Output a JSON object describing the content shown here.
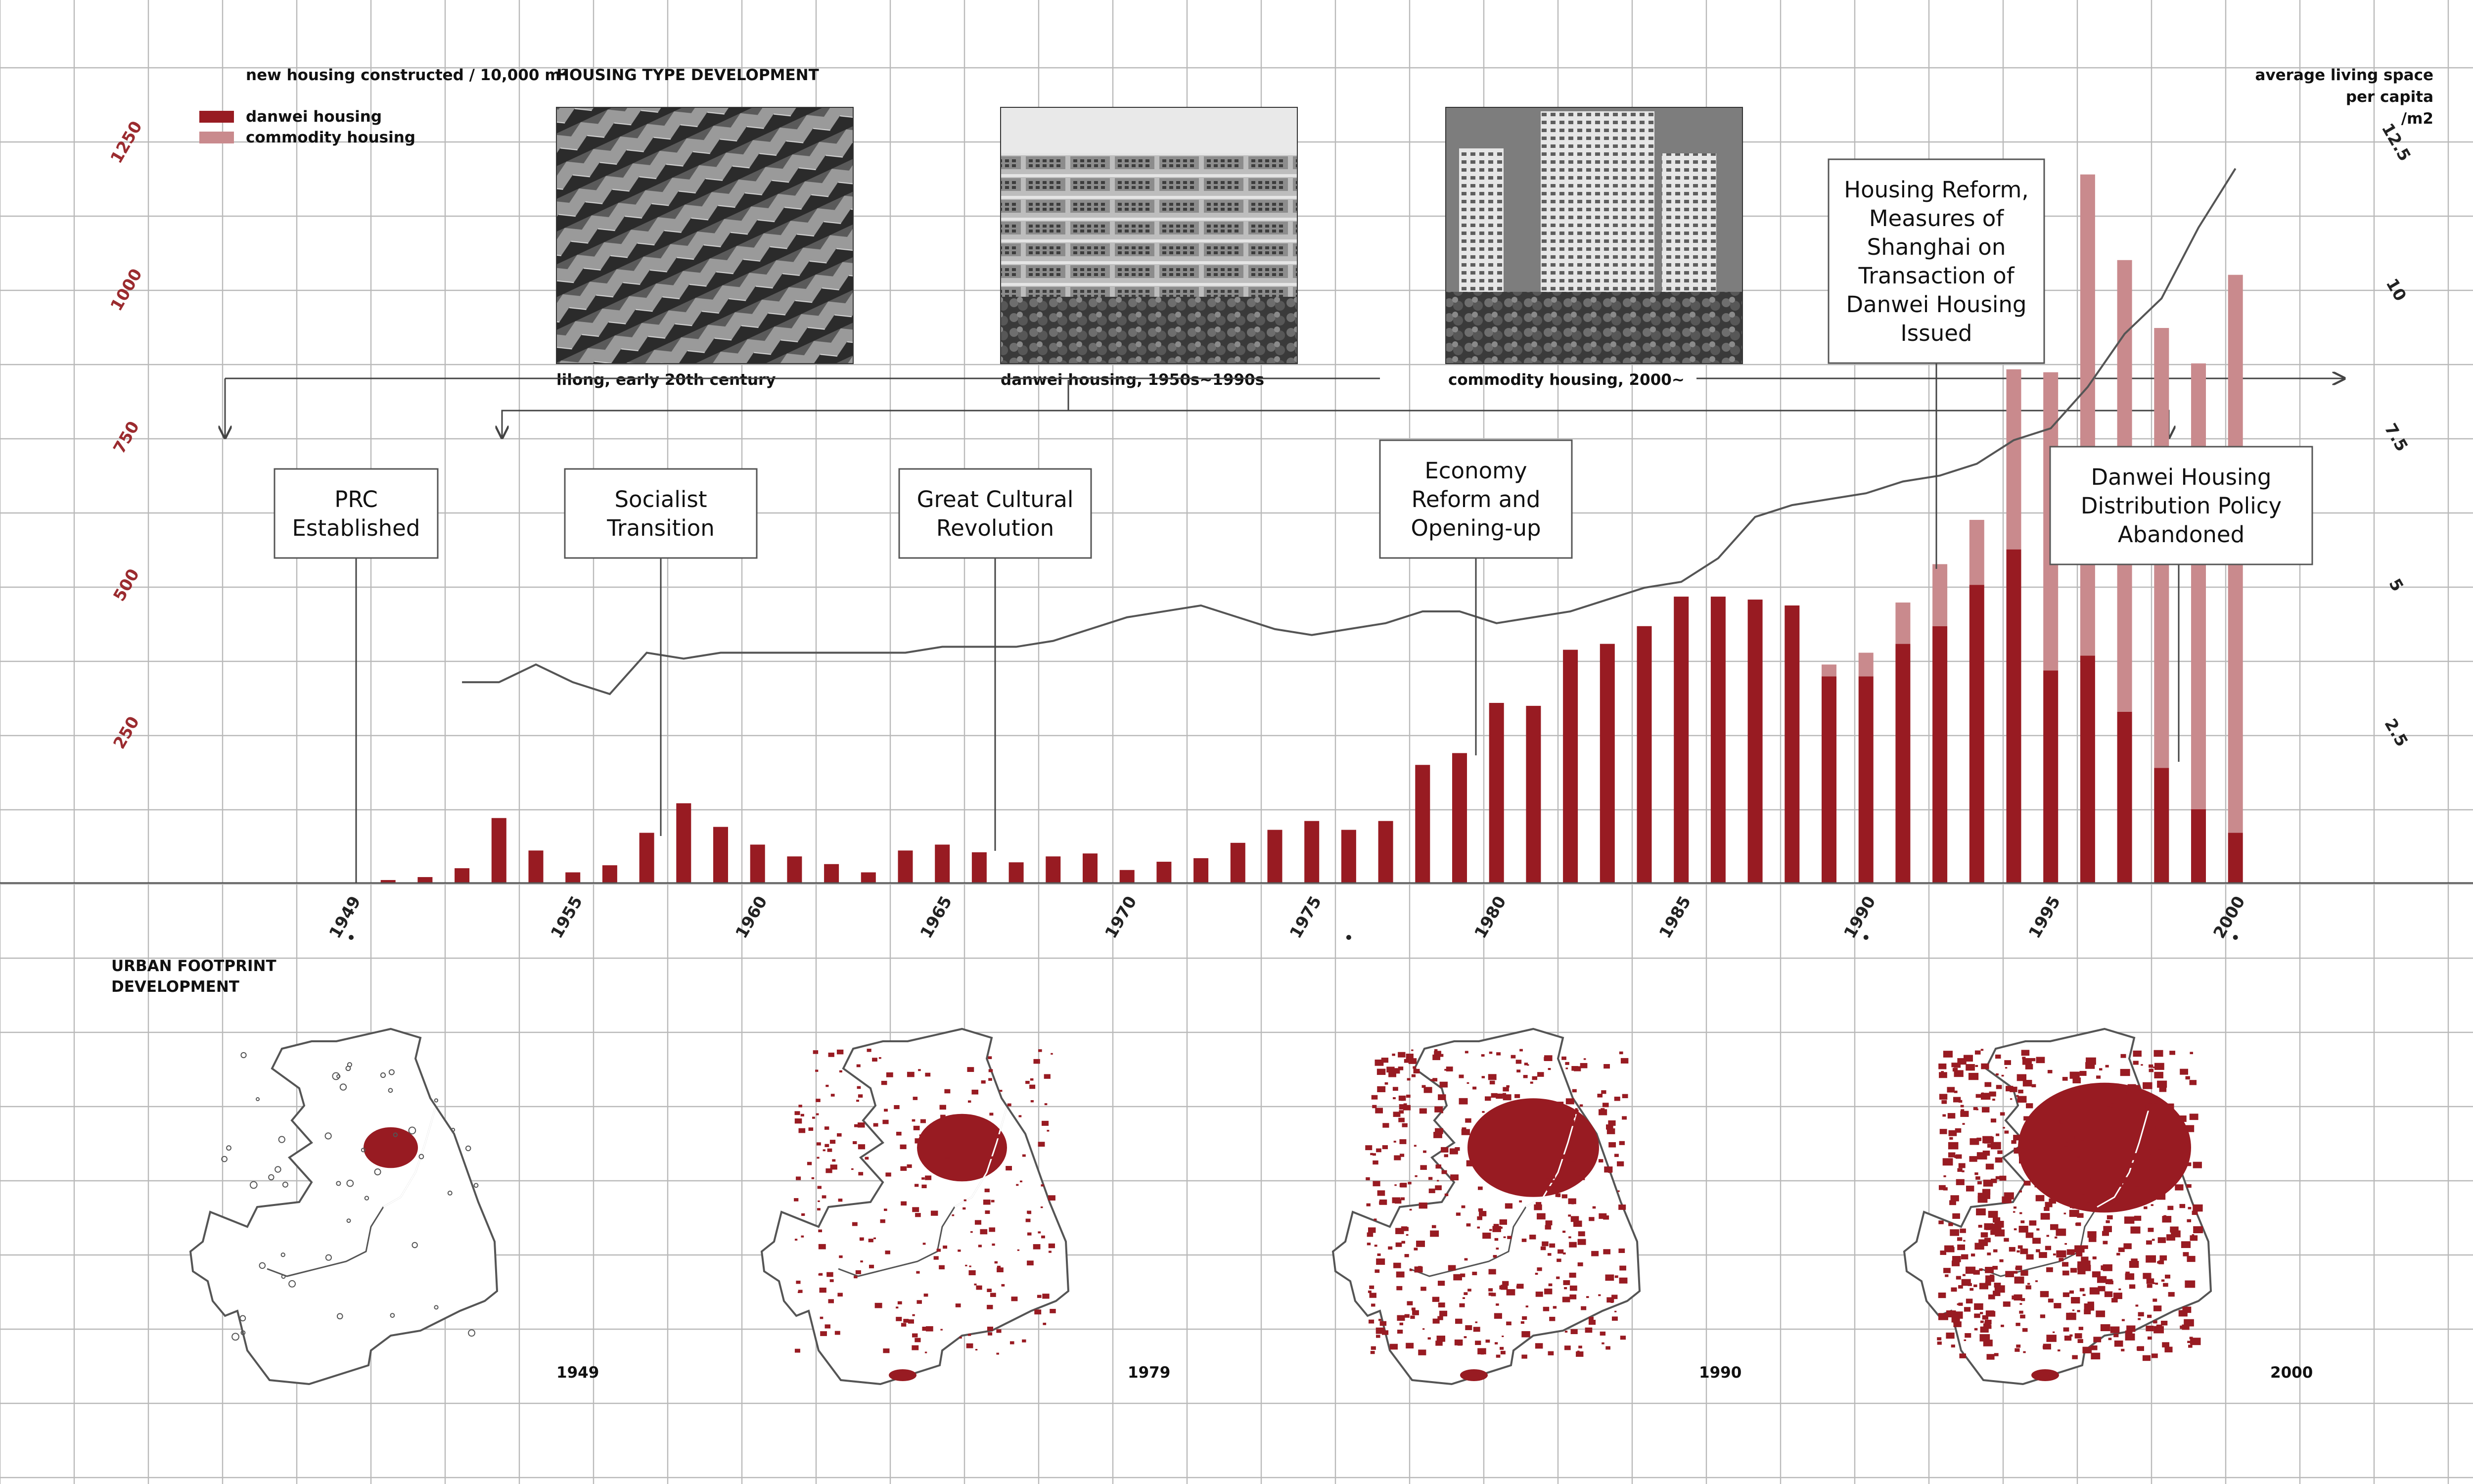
{
  "legend": {
    "title": "new housing constructed / 10,000 m²",
    "danwei_label": "danwei housing",
    "commodity_label": "commodity housing",
    "right_axis_title_1": "average living space",
    "right_axis_title_2": "per capita",
    "right_axis_title_3": "/m2"
  },
  "colors": {
    "danwei": "#981b22",
    "commodity": "#c98a8d",
    "line": "#555555",
    "map_fill": "#981b22"
  },
  "housing_type": {
    "heading": "HOUSING TYPE DEVELOPMENT",
    "photos": [
      {
        "caption": "lilong, early 20th century",
        "subject": "lilong-rooftops-photo"
      },
      {
        "caption": "danwei housing, 1950s~1990s",
        "subject": "danwei-blocks-photo"
      },
      {
        "caption": "commodity housing, 2000~",
        "subject": "commodity-towers-photo"
      }
    ]
  },
  "callouts": [
    {
      "lines": [
        "PRC",
        "Established"
      ],
      "year": 1949
    },
    {
      "lines": [
        "Socialist",
        "Transition"
      ],
      "year": 1957
    },
    {
      "lines": [
        "Great Cultural",
        "Revolution"
      ],
      "year": 1966
    },
    {
      "lines": [
        "Economy",
        "Reform and",
        "Opening-up"
      ],
      "year": 1979
    },
    {
      "lines": [
        "Housing Reform,",
        "Measures of",
        "Shanghai on",
        "Transaction of",
        "Danwei Housing",
        "Issued"
      ],
      "year": 1993
    },
    {
      "lines": [
        "Danwei Housing",
        "Distribution Policy",
        "Abandoned"
      ],
      "year": 1998
    }
  ],
  "chart_data": {
    "type": "bar",
    "title": "",
    "xlabel": "",
    "ylabel": "new housing constructed / 10,000 m²",
    "x_tick_labels": [
      "1949",
      "1955",
      "1960",
      "1965",
      "1970",
      "1975",
      "1980",
      "1985",
      "1990",
      "1995",
      "2000"
    ],
    "ylim": [
      0,
      1250
    ],
    "y_ticks": [
      250,
      500,
      750,
      1000,
      1250
    ],
    "x": [
      1949,
      1950,
      1951,
      1952,
      1953,
      1954,
      1955,
      1956,
      1957,
      1958,
      1959,
      1960,
      1961,
      1962,
      1963,
      1964,
      1965,
      1966,
      1967,
      1968,
      1969,
      1970,
      1971,
      1972,
      1973,
      1974,
      1975,
      1976,
      1977,
      1978,
      1979,
      1980,
      1981,
      1982,
      1983,
      1984,
      1985,
      1986,
      1987,
      1988,
      1989,
      1990,
      1991,
      1992,
      1993,
      1994,
      1995,
      1996,
      1997,
      1998,
      1999,
      2000
    ],
    "series": [
      {
        "name": "danwei housing",
        "values": [
          0,
          5,
          10,
          25,
          110,
          55,
          18,
          30,
          85,
          135,
          95,
          65,
          45,
          32,
          18,
          55,
          65,
          52,
          35,
          45,
          50,
          22,
          36,
          42,
          68,
          90,
          105,
          90,
          105,
          200,
          220,
          305,
          300,
          395,
          405,
          435,
          485,
          485,
          480,
          470,
          350,
          350,
          405,
          435,
          505,
          565,
          360,
          385,
          290,
          195,
          125,
          85
        ]
      },
      {
        "name": "commodity housing",
        "values": [
          0,
          0,
          0,
          0,
          0,
          0,
          0,
          0,
          0,
          0,
          0,
          0,
          0,
          0,
          0,
          0,
          0,
          0,
          0,
          0,
          0,
          0,
          0,
          0,
          0,
          0,
          0,
          0,
          0,
          0,
          0,
          0,
          0,
          0,
          0,
          0,
          0,
          0,
          0,
          0,
          20,
          40,
          70,
          105,
          110,
          305,
          505,
          815,
          765,
          745,
          755,
          945
        ]
      }
    ],
    "line_series": {
      "name": "average living space per capita /m2",
      "axis": "right",
      "ylim": [
        0,
        12.5
      ],
      "y_ticks": [
        2.5,
        5,
        7.5,
        10,
        12.5
      ],
      "x": [
        1952,
        1953,
        1954,
        1955,
        1956,
        1957,
        1958,
        1959,
        1960,
        1961,
        1962,
        1963,
        1964,
        1965,
        1966,
        1967,
        1968,
        1969,
        1970,
        1971,
        1972,
        1973,
        1974,
        1975,
        1976,
        1977,
        1978,
        1979,
        1980,
        1981,
        1982,
        1983,
        1984,
        1985,
        1986,
        1987,
        1988,
        1989,
        1990,
        1991,
        1992,
        1993,
        1994,
        1995,
        1996,
        1997,
        1998,
        1999,
        2000
      ],
      "values": [
        3.4,
        3.4,
        3.7,
        3.4,
        3.2,
        3.9,
        3.8,
        3.9,
        3.9,
        3.9,
        3.9,
        3.9,
        3.9,
        4.0,
        4.0,
        4.0,
        4.1,
        4.3,
        4.5,
        4.6,
        4.7,
        4.5,
        4.3,
        4.2,
        4.3,
        4.4,
        4.6,
        4.6,
        4.4,
        4.5,
        4.6,
        4.8,
        5.0,
        5.1,
        5.5,
        6.2,
        6.4,
        6.5,
        6.6,
        6.8,
        6.9,
        7.1,
        7.5,
        7.7,
        8.4,
        9.3,
        9.9,
        11.1,
        12.1
      ]
    },
    "legend_position": "top-left",
    "grid": true
  },
  "urban": {
    "heading_1": "URBAN FOOTPRINT",
    "heading_2": "DEVELOPMENT",
    "maps": [
      {
        "year_label": "1949",
        "density": 0.0
      },
      {
        "year_label": "1979",
        "density": 0.3
      },
      {
        "year_label": "1990",
        "density": 0.65
      },
      {
        "year_label": "2000",
        "density": 1.0
      }
    ]
  }
}
